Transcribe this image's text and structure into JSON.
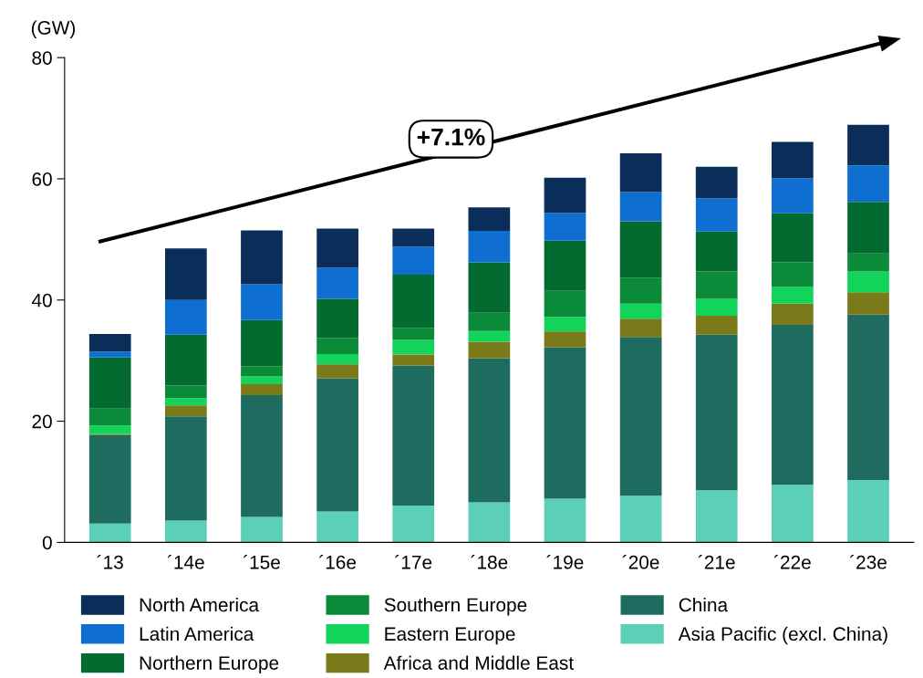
{
  "chart_data": {
    "type": "bar",
    "stacked": true,
    "ylabel": "(GW)",
    "categories": [
      "´13",
      "´14e",
      "´15e",
      "´16e",
      "´17e",
      "´18e",
      "´19e",
      "´20e",
      "´21e",
      "´22e",
      "´23e"
    ],
    "series": [
      {
        "name": "Asia Pacific (excl. China)",
        "color": "#5ccfb8",
        "values": [
          3.1,
          3.6,
          4.2,
          5.1,
          6.1,
          6.6,
          7.2,
          7.7,
          8.6,
          9.5,
          10.3
        ]
      },
      {
        "name": "China",
        "color": "#1e6b60",
        "values": [
          14.6,
          17.2,
          20.1,
          22.0,
          23.1,
          23.8,
          25.0,
          26.2,
          25.7,
          26.4,
          27.3
        ]
      },
      {
        "name": "Africa and Middle East",
        "color": "#7a7a1a",
        "values": [
          0.2,
          1.8,
          1.8,
          2.3,
          1.8,
          2.7,
          2.6,
          3.0,
          3.1,
          3.5,
          3.7
        ]
      },
      {
        "name": "Eastern Europe",
        "color": "#12d45a",
        "values": [
          1.4,
          1.2,
          1.3,
          1.7,
          2.4,
          1.8,
          2.4,
          2.5,
          2.8,
          2.8,
          3.4
        ]
      },
      {
        "name": "Southern Europe",
        "color": "#0b8a3a",
        "values": [
          2.8,
          2.1,
          1.7,
          2.6,
          2.0,
          3.0,
          4.3,
          4.3,
          4.5,
          4.0,
          3.0
        ]
      },
      {
        "name": "Northern Europe",
        "color": "#046b30",
        "values": [
          8.4,
          8.4,
          7.6,
          6.5,
          8.8,
          8.3,
          8.3,
          9.3,
          6.6,
          8.1,
          8.5
        ]
      },
      {
        "name": "Latin America",
        "color": "#0f6fd0",
        "values": [
          1.0,
          5.7,
          5.9,
          5.1,
          4.6,
          5.2,
          4.6,
          4.8,
          5.5,
          5.8,
          6.0
        ]
      },
      {
        "name": "North America",
        "color": "#0a2d5a",
        "values": [
          2.9,
          8.5,
          8.9,
          6.5,
          3.0,
          3.9,
          5.8,
          6.4,
          5.2,
          6.0,
          6.7
        ]
      }
    ],
    "ylim": [
      0,
      80
    ],
    "yticks": [
      0,
      20,
      40,
      60,
      80
    ],
    "annotations": [
      "+7.1%"
    ],
    "grid": false,
    "legend": "bottom"
  }
}
